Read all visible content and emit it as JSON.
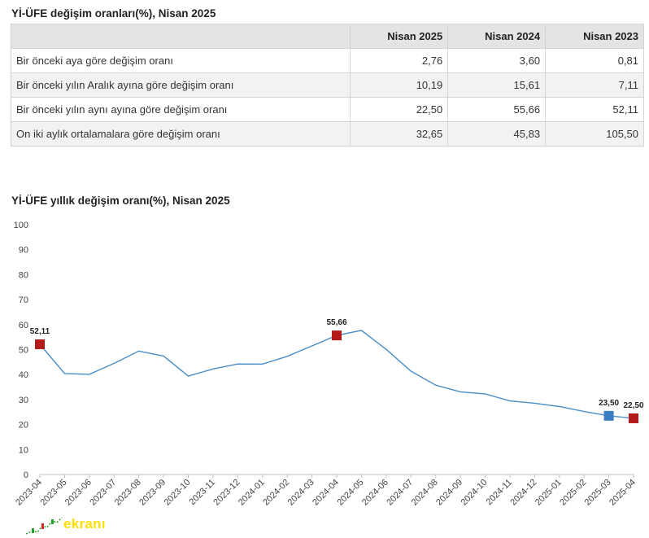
{
  "table": {
    "title": "Yİ-ÜFE değişim oranları(%), Nisan 2025",
    "columns": [
      "",
      "Nisan 2025",
      "Nisan 2024",
      "Nisan 2023"
    ],
    "rows": [
      {
        "label": "Bir önceki aya göre değişim oranı",
        "values": [
          "2,76",
          "3,60",
          "0,81"
        ]
      },
      {
        "label": "Bir önceki yılın Aralık ayına göre değişim oranı",
        "values": [
          "10,19",
          "15,61",
          "7,11"
        ]
      },
      {
        "label": "Bir önceki yılın aynı ayına göre değişim oranı",
        "values": [
          "22,50",
          "55,66",
          "52,11"
        ]
      },
      {
        "label": "On iki aylık ortalamalara göre değişim oranı",
        "values": [
          "32,65",
          "45,83",
          "105,50"
        ]
      }
    ]
  },
  "chart_data": {
    "type": "line",
    "title": "Yİ-ÜFE yıllık değişim oranı(%), Nisan 2025",
    "xlabel": "",
    "ylabel": "",
    "ylim": [
      0,
      100
    ],
    "yticks": [
      0,
      10,
      20,
      30,
      40,
      50,
      60,
      70,
      80,
      90,
      100
    ],
    "grid": false,
    "x": [
      "2023-04",
      "2023-05",
      "2023-06",
      "2023-07",
      "2023-08",
      "2023-09",
      "2023-10",
      "2023-11",
      "2023-12",
      "2024-01",
      "2024-02",
      "2024-03",
      "2024-04",
      "2024-05",
      "2024-06",
      "2024-07",
      "2024-08",
      "2024-09",
      "2024-10",
      "2024-11",
      "2024-12",
      "2025-01",
      "2025-02",
      "2025-03",
      "2025-04"
    ],
    "series": [
      {
        "values": [
          52.11,
          40.42,
          40.09,
          44.5,
          49.41,
          47.44,
          39.39,
          42.25,
          44.22,
          44.2,
          47.29,
          51.47,
          55.66,
          57.68,
          50.09,
          41.37,
          35.75,
          33.09,
          32.24,
          29.47,
          28.52,
          27.2,
          25.21,
          23.5,
          22.5
        ],
        "color": "#4a8ec8"
      }
    ],
    "markers": [
      {
        "index": 0,
        "label": "52,11",
        "color": "#b31b1b"
      },
      {
        "index": 12,
        "label": "55,66",
        "color": "#b31b1b"
      },
      {
        "index": 23,
        "label": "23,50",
        "color": "#3a7fc0"
      },
      {
        "index": 24,
        "label": "22,50",
        "color": "#b31b1b"
      }
    ]
  },
  "logo": {
    "text": "ekranı"
  }
}
